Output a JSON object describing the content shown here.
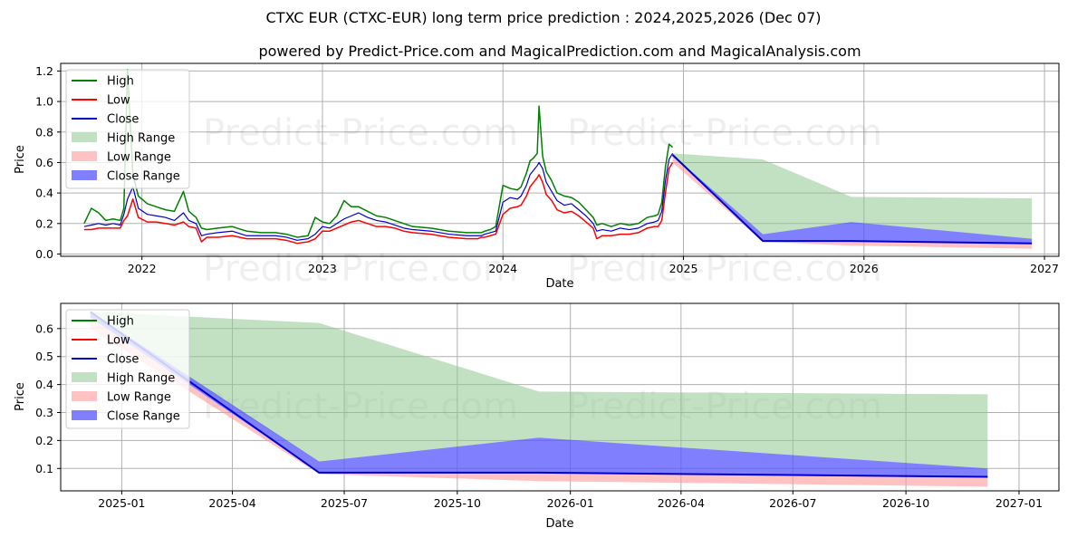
{
  "title": "CTXC EUR (CTXC-EUR) long term price prediction : 2024,2025,2026 (Dec 07)",
  "subtitle": "powered by Predict-Price.com and MagicalPrediction.com and MagicalAnalysis.com",
  "watermark": "Predict-Price.com",
  "colors": {
    "high": "#008000",
    "low": "#ff0000",
    "close": "#0000cc",
    "high_range": "#8fc98f",
    "low_range": "#ff9999",
    "close_range": "#5555ff"
  },
  "legend": [
    "High",
    "Low",
    "Close",
    "High Range",
    "Low Range",
    "Close Range"
  ],
  "chart_data": [
    {
      "type": "line",
      "name": "top",
      "title": "",
      "xlabel": "Date",
      "ylabel": "Price",
      "xlim": [
        2021.55,
        2027.08
      ],
      "ylim": [
        -0.015,
        1.25
      ],
      "x_ticks": [
        2022,
        2023,
        2024,
        2025,
        2026,
        2027
      ],
      "x_tick_labels": [
        "2022",
        "2023",
        "2024",
        "2025",
        "2026",
        "2027"
      ],
      "y_ticks": [
        0.0,
        0.2,
        0.4,
        0.6,
        0.8,
        1.0,
        1.2
      ],
      "y_tick_labels": [
        "0.0",
        "0.2",
        "0.4",
        "0.6",
        "0.8",
        "1.0",
        "1.2"
      ],
      "grid": true,
      "legend_position": "upper-left",
      "history": {
        "x": [
          2021.68,
          2021.72,
          2021.76,
          2021.8,
          2021.84,
          2021.88,
          2021.9,
          2021.92,
          2021.95,
          2021.98,
          2022.03,
          2022.08,
          2022.13,
          2022.18,
          2022.23,
          2022.26,
          2022.3,
          2022.33,
          2022.36,
          2022.42,
          2022.5,
          2022.58,
          2022.66,
          2022.74,
          2022.8,
          2022.86,
          2022.92,
          2022.96,
          2023.0,
          2023.04,
          2023.08,
          2023.12,
          2023.16,
          2023.2,
          2023.25,
          2023.3,
          2023.35,
          2023.4,
          2023.45,
          2023.5,
          2023.6,
          2023.7,
          2023.8,
          2023.86,
          2023.88,
          2023.9,
          2023.93,
          2023.96,
          2024.0,
          2024.04,
          2024.08,
          2024.1,
          2024.13,
          2024.15,
          2024.17,
          2024.19,
          2024.2,
          2024.22,
          2024.24,
          2024.27,
          2024.3,
          2024.34,
          2024.38,
          2024.42,
          2024.46,
          2024.5,
          2024.52,
          2024.55,
          2024.6,
          2024.65,
          2024.7,
          2024.75,
          2024.8,
          2024.84,
          2024.86,
          2024.88,
          2024.9,
          2024.92,
          2024.94
        ],
        "close": [
          0.18,
          0.19,
          0.2,
          0.19,
          0.2,
          0.19,
          0.26,
          0.36,
          0.44,
          0.3,
          0.26,
          0.25,
          0.24,
          0.22,
          0.27,
          0.22,
          0.2,
          0.12,
          0.13,
          0.14,
          0.15,
          0.12,
          0.12,
          0.12,
          0.11,
          0.09,
          0.1,
          0.13,
          0.18,
          0.17,
          0.2,
          0.23,
          0.25,
          0.27,
          0.24,
          0.22,
          0.21,
          0.19,
          0.17,
          0.16,
          0.15,
          0.13,
          0.12,
          0.12,
          0.12,
          0.13,
          0.14,
          0.15,
          0.34,
          0.37,
          0.36,
          0.38,
          0.45,
          0.52,
          0.55,
          0.58,
          0.6,
          0.56,
          0.47,
          0.41,
          0.35,
          0.32,
          0.33,
          0.29,
          0.25,
          0.2,
          0.15,
          0.16,
          0.15,
          0.17,
          0.16,
          0.17,
          0.2,
          0.21,
          0.22,
          0.28,
          0.48,
          0.62,
          0.66
        ],
        "high": [
          0.2,
          0.3,
          0.27,
          0.22,
          0.23,
          0.22,
          0.3,
          1.21,
          0.52,
          0.38,
          0.33,
          0.31,
          0.29,
          0.28,
          0.41,
          0.28,
          0.24,
          0.17,
          0.16,
          0.17,
          0.18,
          0.15,
          0.14,
          0.14,
          0.13,
          0.11,
          0.12,
          0.24,
          0.21,
          0.2,
          0.25,
          0.35,
          0.31,
          0.31,
          0.28,
          0.25,
          0.24,
          0.22,
          0.2,
          0.18,
          0.17,
          0.15,
          0.14,
          0.14,
          0.14,
          0.15,
          0.16,
          0.18,
          0.45,
          0.43,
          0.42,
          0.44,
          0.53,
          0.61,
          0.63,
          0.66,
          0.97,
          0.64,
          0.54,
          0.48,
          0.4,
          0.38,
          0.37,
          0.34,
          0.29,
          0.24,
          0.19,
          0.2,
          0.18,
          0.2,
          0.19,
          0.2,
          0.24,
          0.25,
          0.26,
          0.34,
          0.57,
          0.72,
          0.7
        ],
        "low": [
          0.16,
          0.16,
          0.17,
          0.17,
          0.17,
          0.17,
          0.22,
          0.25,
          0.36,
          0.24,
          0.21,
          0.21,
          0.2,
          0.19,
          0.21,
          0.18,
          0.17,
          0.08,
          0.11,
          0.11,
          0.12,
          0.1,
          0.1,
          0.1,
          0.09,
          0.07,
          0.08,
          0.1,
          0.15,
          0.15,
          0.17,
          0.19,
          0.21,
          0.22,
          0.2,
          0.18,
          0.18,
          0.17,
          0.15,
          0.14,
          0.13,
          0.11,
          0.1,
          0.1,
          0.11,
          0.11,
          0.12,
          0.13,
          0.26,
          0.3,
          0.31,
          0.32,
          0.38,
          0.44,
          0.47,
          0.5,
          0.52,
          0.47,
          0.39,
          0.35,
          0.29,
          0.27,
          0.28,
          0.25,
          0.21,
          0.17,
          0.1,
          0.12,
          0.12,
          0.13,
          0.13,
          0.14,
          0.17,
          0.18,
          0.18,
          0.22,
          0.4,
          0.56,
          0.6
        ]
      },
      "forecast": {
        "x": [
          2024.94,
          2025.44,
          2025.93,
          2026.93
        ],
        "close": [
          0.65,
          0.085,
          0.085,
          0.07
        ],
        "high_range_upper": [
          0.66,
          0.62,
          0.375,
          0.365
        ],
        "high_range_lower": [
          0.64,
          0.13,
          0.21,
          0.1
        ],
        "close_range_upper": [
          0.65,
          0.13,
          0.21,
          0.1
        ],
        "close_range_lower": [
          0.64,
          0.085,
          0.085,
          0.07
        ],
        "low_range_upper": [
          0.64,
          0.085,
          0.085,
          0.07
        ],
        "low_range_lower": [
          0.6,
          0.08,
          0.055,
          0.035
        ]
      }
    },
    {
      "type": "line",
      "name": "bottom",
      "title": "",
      "xlabel": "Date",
      "ylabel": "Price",
      "xlim": [
        2024.8639,
        2027.0889
      ],
      "ylim": [
        0.02,
        0.69
      ],
      "x_ticks": [
        2025.0,
        2025.2466,
        2025.4959,
        2025.7479,
        2026.0,
        2026.2466,
        2026.4959,
        2026.7479,
        2027.0
      ],
      "x_tick_labels": [
        "2025-01",
        "2025-04",
        "2025-07",
        "2025-10",
        "2026-01",
        "2026-04",
        "2026-07",
        "2026-10",
        "2027-01"
      ],
      "y_ticks": [
        0.1,
        0.2,
        0.3,
        0.4,
        0.5,
        0.6
      ],
      "y_tick_labels": [
        "0.1",
        "0.2",
        "0.3",
        "0.4",
        "0.5",
        "0.6"
      ],
      "grid": true,
      "legend_position": "upper-left",
      "forecast": {
        "x": [
          2024.93,
          2025.44,
          2025.93,
          2026.93
        ],
        "close": [
          0.66,
          0.085,
          0.085,
          0.07
        ],
        "high_range_upper": [
          0.66,
          0.62,
          0.375,
          0.365
        ],
        "high_range_lower": [
          0.64,
          0.125,
          0.21,
          0.1
        ],
        "close_range_upper": [
          0.66,
          0.125,
          0.21,
          0.1
        ],
        "close_range_lower": [
          0.64,
          0.085,
          0.085,
          0.07
        ],
        "low_range_upper": [
          0.64,
          0.085,
          0.085,
          0.07
        ],
        "low_range_lower": [
          0.6,
          0.08,
          0.055,
          0.035
        ]
      }
    }
  ]
}
